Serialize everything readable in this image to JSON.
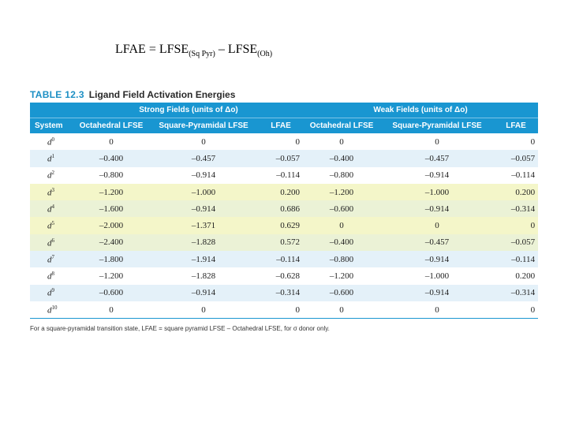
{
  "formula": {
    "lhs": "LFAE = LFSE",
    "sub1": "(Sq Pyr)",
    "minus": " – LFSE",
    "sub2": "(Oh)"
  },
  "table": {
    "number": "TABLE 12.3",
    "title": "Ligand Field Activation Energies",
    "group_strong": "Strong Fields (units of Δo)",
    "group_weak": "Weak Fields (units of Δo)",
    "columns": [
      "System",
      "Octahedral LFSE",
      "Square-Pyramidal LFSE",
      "LFAE",
      "Octahedral LFSE",
      "Square-Pyramidal LFSE",
      "LFAE"
    ],
    "rows": [
      {
        "sys": "d",
        "exp": "0",
        "v": [
          "0",
          "0",
          "0",
          "0",
          "0",
          "0"
        ]
      },
      {
        "sys": "d",
        "exp": "1",
        "v": [
          "–0.400",
          "–0.457",
          "–0.057",
          "–0.400",
          "–0.457",
          "–0.057"
        ]
      },
      {
        "sys": "d",
        "exp": "2",
        "v": [
          "–0.800",
          "–0.914",
          "–0.114",
          "–0.800",
          "–0.914",
          "–0.114"
        ]
      },
      {
        "sys": "d",
        "exp": "3",
        "v": [
          "–1.200",
          "–1.000",
          "0.200",
          "–1.200",
          "–1.000",
          "0.200"
        ]
      },
      {
        "sys": "d",
        "exp": "4",
        "v": [
          "–1.600",
          "–0.914",
          "0.686",
          "–0.600",
          "–0.914",
          "–0.314"
        ]
      },
      {
        "sys": "d",
        "exp": "5",
        "v": [
          "–2.000",
          "–1.371",
          "0.629",
          "0",
          "0",
          "0"
        ]
      },
      {
        "sys": "d",
        "exp": "6",
        "v": [
          "–2.400",
          "–1.828",
          "0.572",
          "–0.400",
          "–0.457",
          "–0.057"
        ]
      },
      {
        "sys": "d",
        "exp": "7",
        "v": [
          "–1.800",
          "–1.914",
          "–0.114",
          "–0.800",
          "–0.914",
          "–0.114"
        ]
      },
      {
        "sys": "d",
        "exp": "8",
        "v": [
          "–1.200",
          "–1.828",
          "–0.628",
          "–1.200",
          "–1.000",
          "0.200"
        ]
      },
      {
        "sys": "d",
        "exp": "9",
        "v": [
          "–0.600",
          "–0.914",
          "–0.314",
          "–0.600",
          "–0.914",
          "–0.314"
        ]
      },
      {
        "sys": "d",
        "exp": "10",
        "v": [
          "0",
          "0",
          "0",
          "0",
          "0",
          "0"
        ]
      }
    ],
    "footnote": "For a square-pyramidal transition state, LFAE = square pyramid LFSE – Octahedral LFSE, for σ donor only."
  }
}
